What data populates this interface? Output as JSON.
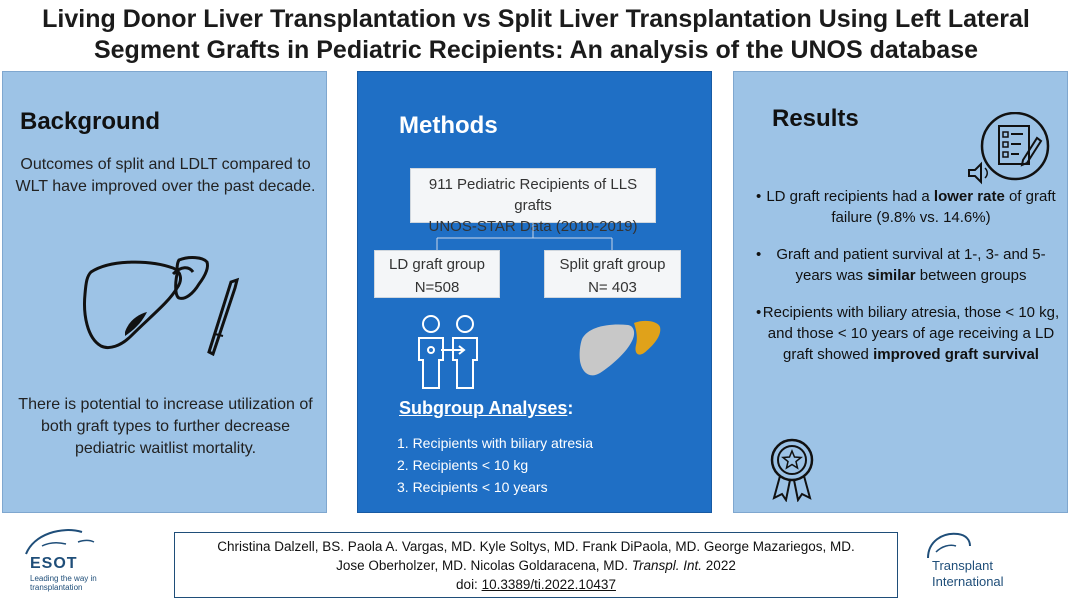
{
  "title": {
    "line1": "Living Donor Liver Transplantation vs Split Liver Transplantation Using Left Lateral",
    "line2": "Segment Grafts in Pediatric Recipients: An analysis of the UNOS database"
  },
  "background": {
    "heading": "Background",
    "text1": "Outcomes of split and LDLT compared to WLT have improved over the past decade.",
    "text2": "There is potential to increase utilization of both graft types to further decrease pediatric waitlist mortality."
  },
  "methods": {
    "heading": "Methods",
    "cohort_line1": "911 Pediatric Recipients of LLS grafts",
    "cohort_line2": "UNOS-STAR Data (2010-2019)",
    "ld_label": "LD graft group",
    "ld_value": "N=508",
    "split_label": "Split graft group",
    "split_value": "N= 403",
    "subgroup_heading": "Subgroup Analyses",
    "subgroup_colon": ":",
    "subgroups": [
      "1. Recipients with biliary atresia",
      "2. Recipients < 10 kg",
      "3. Recipients  < 10 years"
    ]
  },
  "results": {
    "heading": "Results",
    "bullet": "•",
    "r1_pre": "LD graft recipients had a ",
    "r1_bold": "lower rate",
    "r1_post": " of graft failure (9.8% vs. 14.6%)",
    "r2_pre": "Graft and patient survival at 1-, 3- and 5-years was ",
    "r2_bold": "similar",
    "r2_post": " between groups",
    "r3_pre": "Recipients with biliary atresia, those < 10 kg, and those < 10 years of age receiving a LD graft showed ",
    "r3_bold": "improved graft survival"
  },
  "citation": {
    "line1": "Christina Dalzell, BS. Paola A. Vargas, MD. Kyle Soltys, MD. Frank DiPaola, MD. George Mazariegos, MD.",
    "line2_pre": "Jose Oberholzer, MD. Nicolas Goldaracena, MD. ",
    "line2_journal": "Transpl. Int.",
    "line2_year": " 2022",
    "doi_label": "doi: ",
    "doi": "10.3389/ti.2022.10437"
  },
  "logos": {
    "esot_name": "ESOT",
    "esot_tagline": "Leading the way in transplantation",
    "ti_line1": "Transplant",
    "ti_line2": "International"
  },
  "colors": {
    "panel_light": "#9dc3e6",
    "panel_dark": "#1f6fc5",
    "liver_gray": "#c8c8c8",
    "liver_gold": "#e0a21a",
    "logo_blue": "#1f4e79"
  }
}
